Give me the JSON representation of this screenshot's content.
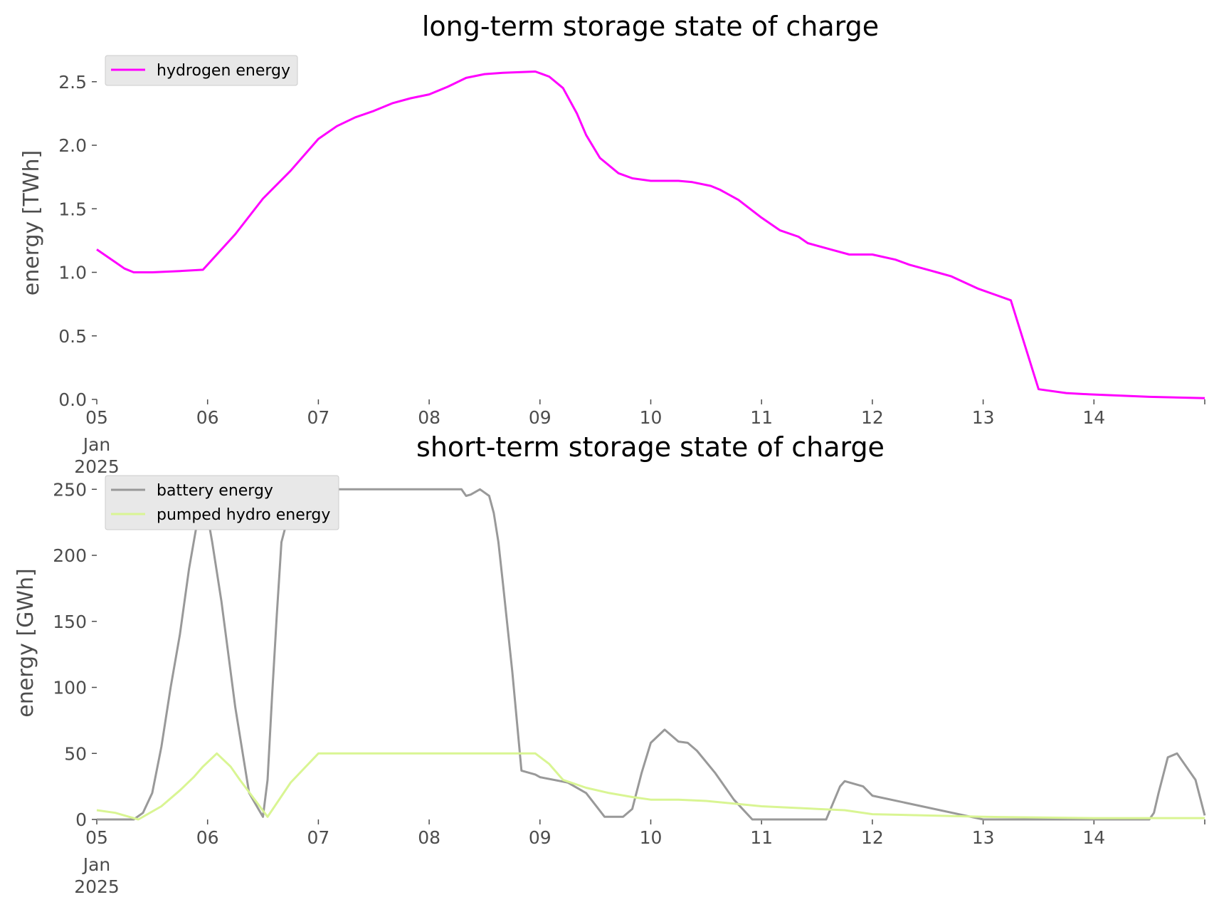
{
  "chart_data": [
    {
      "type": "line",
      "title": "long-term storage state of charge",
      "xlabel": "",
      "ylabel": "energy [TWh]",
      "xlim": [
        "2025-01-05",
        "2025-01-15"
      ],
      "ylim": [
        0,
        2.65
      ],
      "x_ticks": [
        "05",
        "06",
        "07",
        "08",
        "09",
        "10",
        "11",
        "12",
        "13",
        "14"
      ],
      "x_tick_sub": [
        "Jan",
        "2025"
      ],
      "y_ticks": [
        "0.0",
        "0.5",
        "1.0",
        "1.5",
        "2.0",
        "2.5"
      ],
      "grid": false,
      "legend_position": "top-left",
      "series": [
        {
          "name": "hydrogen energy",
          "color": "#ff00ff",
          "x": [
            "2025-01-05 00:00",
            "2025-01-05 04:00",
            "2025-01-05 06:00",
            "2025-01-05 08:00",
            "2025-01-05 12:00",
            "2025-01-05 18:00",
            "2025-01-05 23:00",
            "2025-01-06 06:00",
            "2025-01-06 12:00",
            "2025-01-06 18:00",
            "2025-01-07 00:00",
            "2025-01-07 04:00",
            "2025-01-07 08:00",
            "2025-01-07 12:00",
            "2025-01-07 16:00",
            "2025-01-07 20:00",
            "2025-01-08 00:00",
            "2025-01-08 04:00",
            "2025-01-08 08:00",
            "2025-01-08 12:00",
            "2025-01-08 16:00",
            "2025-01-08 23:00",
            "2025-01-09 02:00",
            "2025-01-09 05:00",
            "2025-01-09 08:00",
            "2025-01-09 10:00",
            "2025-01-09 13:00",
            "2025-01-09 17:00",
            "2025-01-09 20:00",
            "2025-01-10 00:00",
            "2025-01-10 06:00",
            "2025-01-10 09:00",
            "2025-01-10 13:00",
            "2025-01-10 15:00",
            "2025-01-10 19:00",
            "2025-01-11 00:00",
            "2025-01-11 04:00",
            "2025-01-11 08:00",
            "2025-01-11 10:00",
            "2025-01-11 15:00",
            "2025-01-11 19:00",
            "2025-01-12 00:00",
            "2025-01-12 05:00",
            "2025-01-12 08:00",
            "2025-01-12 12:00",
            "2025-01-12 14:00",
            "2025-01-12 17:00",
            "2025-01-12 23:00",
            "2025-01-13 06:00",
            "2025-01-13 12:00",
            "2025-01-13 18:00",
            "2025-01-13 23:00",
            "2025-01-14 12:00",
            "2025-01-15 00:00"
          ],
          "y": [
            1.18,
            1.08,
            1.03,
            1.0,
            1.0,
            1.01,
            1.02,
            1.3,
            1.58,
            1.8,
            2.05,
            2.15,
            2.22,
            2.27,
            2.33,
            2.37,
            2.4,
            2.46,
            2.53,
            2.56,
            2.57,
            2.58,
            2.54,
            2.45,
            2.25,
            2.08,
            1.9,
            1.78,
            1.74,
            1.72,
            1.72,
            1.71,
            1.68,
            1.65,
            1.57,
            1.43,
            1.33,
            1.28,
            1.23,
            1.18,
            1.14,
            1.14,
            1.1,
            1.06,
            1.02,
            1.0,
            0.97,
            0.87,
            0.78,
            0.08,
            0.05,
            0.04,
            0.02,
            0.01
          ]
        }
      ]
    },
    {
      "type": "line",
      "title": "short-term storage state of charge",
      "xlabel": "",
      "ylabel": "energy [GWh]",
      "xlim": [
        "2025-01-05",
        "2025-01-15"
      ],
      "ylim": [
        0,
        255
      ],
      "x_ticks": [
        "05",
        "06",
        "07",
        "08",
        "09",
        "10",
        "11",
        "12",
        "13",
        "14"
      ],
      "x_tick_sub": [
        "Jan",
        "2025"
      ],
      "y_ticks": [
        "0",
        "50",
        "100",
        "150",
        "200",
        "250"
      ],
      "grid": false,
      "legend_position": "top-left",
      "series": [
        {
          "name": "battery energy",
          "color": "#999999",
          "x": [
            "2025-01-05 00:00",
            "2025-01-05 08:00",
            "2025-01-05 10:00",
            "2025-01-05 12:00",
            "2025-01-05 14:00",
            "2025-01-05 16:00",
            "2025-01-05 18:00",
            "2025-01-05 20:00",
            "2025-01-05 23:00",
            "2025-01-06 01:00",
            "2025-01-06 03:00",
            "2025-01-06 06:00",
            "2025-01-06 09:00",
            "2025-01-06 12:00",
            "2025-01-06 13:00",
            "2025-01-06 14:00",
            "2025-01-06 15:00",
            "2025-01-06 16:00",
            "2025-01-06 19:00",
            "2025-01-06 22:00",
            "2025-01-07 00:00",
            "2025-01-07 12:00",
            "2025-01-08 00:00",
            "2025-01-08 07:00",
            "2025-01-08 08:00",
            "2025-01-08 09:00",
            "2025-01-08 11:00",
            "2025-01-08 13:00",
            "2025-01-08 14:00",
            "2025-01-08 15:00",
            "2025-01-08 16:00",
            "2025-01-08 18:00",
            "2025-01-08 20:00",
            "2025-01-08 23:00",
            "2025-01-09 00:00",
            "2025-01-09 06:00",
            "2025-01-09 10:00",
            "2025-01-09 14:00",
            "2025-01-09 18:00",
            "2025-01-09 20:00",
            "2025-01-09 22:00",
            "2025-01-10 00:00",
            "2025-01-10 03:00",
            "2025-01-10 05:00",
            "2025-01-10 06:00",
            "2025-01-10 08:00",
            "2025-01-10 10:00",
            "2025-01-10 14:00",
            "2025-01-10 18:00",
            "2025-01-10 22:00",
            "2025-01-11 00:00",
            "2025-01-11 05:00",
            "2025-01-11 10:00",
            "2025-01-11 14:00",
            "2025-01-11 17:00",
            "2025-01-11 18:00",
            "2025-01-11 22:00",
            "2025-01-12 00:00",
            "2025-01-13 00:00",
            "2025-01-14 00:00",
            "2025-01-14 09:00",
            "2025-01-14 12:00",
            "2025-01-14 13:00",
            "2025-01-14 14:00",
            "2025-01-14 16:00",
            "2025-01-14 18:00",
            "2025-01-14 22:00",
            "2025-01-15 00:00"
          ],
          "y": [
            0,
            0,
            5,
            20,
            55,
            100,
            140,
            190,
            250,
            210,
            165,
            85,
            20,
            2,
            30,
            95,
            155,
            210,
            250,
            250,
            250,
            250,
            250,
            250,
            245,
            246,
            250,
            245,
            232,
            210,
            178,
            112,
            37,
            34,
            32,
            28,
            20,
            2,
            2,
            8,
            35,
            58,
            68,
            62,
            59,
            58,
            52,
            35,
            15,
            0,
            0,
            0,
            0,
            0,
            25,
            29,
            25,
            18,
            0,
            0,
            0,
            0,
            5,
            20,
            47,
            50,
            30,
            3
          ]
        },
        {
          "name": "pumped hydro energy",
          "color": "#d9f593",
          "x": [
            "2025-01-05 00:00",
            "2025-01-05 04:00",
            "2025-01-05 07:00",
            "2025-01-05 09:00",
            "2025-01-05 14:00",
            "2025-01-05 18:00",
            "2025-01-05 21:00",
            "2025-01-05 23:00",
            "2025-01-06 02:00",
            "2025-01-06 05:00",
            "2025-01-06 07:00",
            "2025-01-06 13:00",
            "2025-01-06 18:00",
            "2025-01-07 00:00",
            "2025-01-08 00:00",
            "2025-01-08 23:00",
            "2025-01-09 02:00",
            "2025-01-09 05:00",
            "2025-01-09 10:00",
            "2025-01-09 15:00",
            "2025-01-09 20:00",
            "2025-01-10 00:00",
            "2025-01-10 06:00",
            "2025-01-10 12:00",
            "2025-01-11 00:00",
            "2025-01-11 12:00",
            "2025-01-11 18:00",
            "2025-01-12 00:00",
            "2025-01-13 00:00",
            "2025-01-14 00:00",
            "2025-01-15 00:00"
          ],
          "y": [
            7,
            5,
            2,
            0,
            10,
            22,
            32,
            40,
            50,
            40,
            30,
            2,
            28,
            50,
            50,
            50,
            42,
            30,
            24,
            20,
            17,
            15,
            15,
            14,
            10,
            8,
            7,
            4,
            2,
            1,
            1
          ]
        }
      ]
    }
  ]
}
